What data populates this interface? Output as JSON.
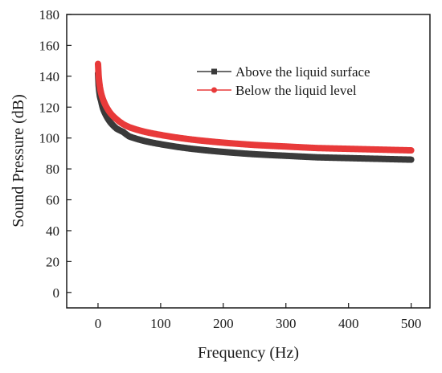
{
  "chart_data": {
    "type": "line",
    "title": "",
    "xlabel": "Frequency (Hz)",
    "ylabel": "Sound Pressure (dB)",
    "xlim": [
      -50,
      530
    ],
    "ylim": [
      -10,
      180
    ],
    "xticks": [
      0,
      100,
      200,
      300,
      400,
      500
    ],
    "yticks": [
      0,
      20,
      40,
      60,
      80,
      100,
      120,
      140,
      160,
      180
    ],
    "grid": false,
    "legend_position": "top-right",
    "series": [
      {
        "name": "Above the liquid surface",
        "color": "#3a3a3a",
        "marker": "square",
        "x": [
          0,
          1,
          2,
          3,
          5,
          8,
          10,
          15,
          20,
          30,
          40,
          50,
          75,
          100,
          150,
          200,
          250,
          300,
          350,
          400,
          450,
          500
        ],
        "values": [
          142,
          134,
          130,
          127,
          124,
          119,
          117,
          113,
          110,
          106,
          104,
          101,
          98,
          96,
          93,
          91,
          89.5,
          88.5,
          87.5,
          87,
          86.5,
          86
        ]
      },
      {
        "name": "Below the liquid level",
        "color": "#e83a3a",
        "marker": "circle",
        "x": [
          0,
          1,
          2,
          3,
          5,
          8,
          10,
          15,
          20,
          30,
          40,
          50,
          75,
          100,
          150,
          200,
          250,
          300,
          350,
          400,
          450,
          500
        ],
        "values": [
          148,
          140,
          136,
          133,
          129,
          125,
          123,
          119,
          116,
          112,
          109,
          107,
          104,
          102,
          99,
          97,
          95.5,
          94.5,
          93.5,
          93,
          92.5,
          92
        ]
      }
    ]
  }
}
